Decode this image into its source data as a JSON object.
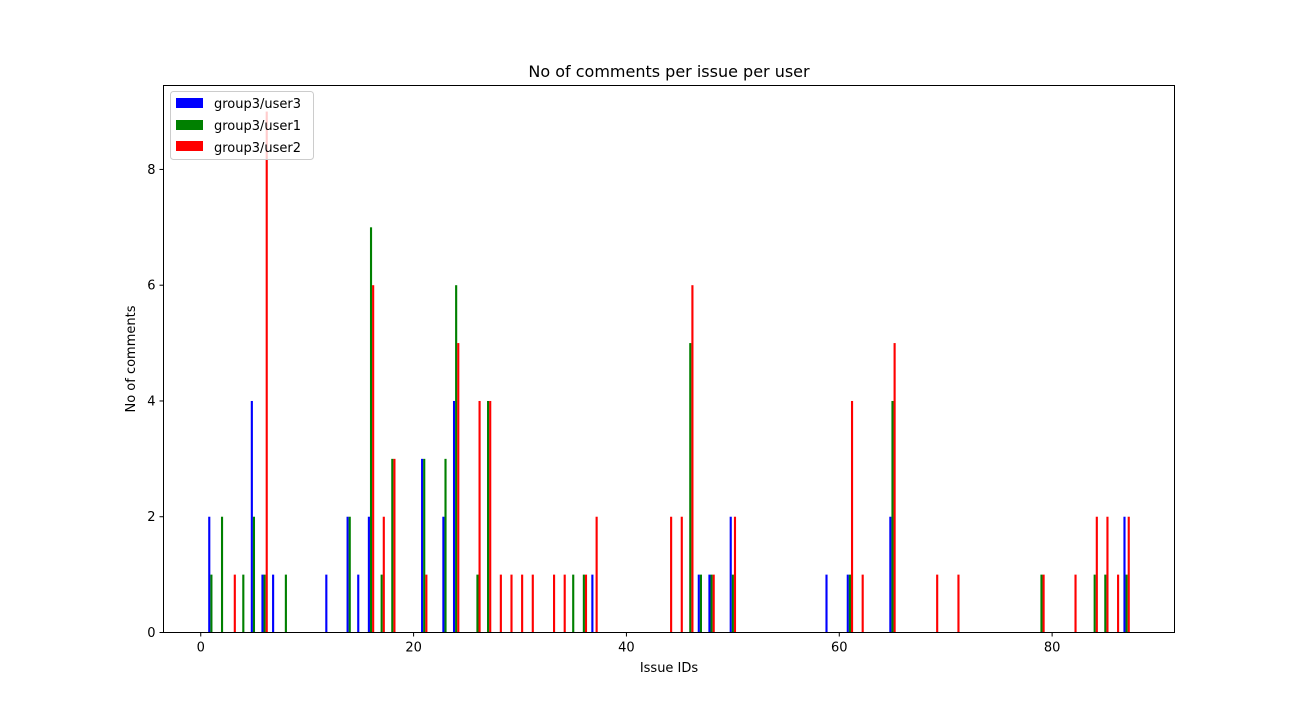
{
  "chart_data": {
    "type": "bar",
    "title": "No of comments per issue per user",
    "xlabel": "Issue IDs",
    "ylabel": "No of comments",
    "xlim": [
      -3.5,
      91.5
    ],
    "ylim": [
      0,
      9.45
    ],
    "xticks": [
      0,
      20,
      40,
      60,
      80
    ],
    "yticks": [
      0,
      2,
      4,
      6,
      8
    ],
    "grid": false,
    "legend_position": "upper left",
    "bar_width": 0.2,
    "series": [
      {
        "name": "group3/user3",
        "color": "#0000ff",
        "offset": -0.2,
        "points": [
          [
            1,
            2
          ],
          [
            5,
            4
          ],
          [
            6,
            1
          ],
          [
            7,
            1
          ],
          [
            12,
            1
          ],
          [
            14,
            2
          ],
          [
            15,
            1
          ],
          [
            16,
            2
          ],
          [
            21,
            3
          ],
          [
            23,
            2
          ],
          [
            24,
            4
          ],
          [
            37,
            1
          ],
          [
            47,
            1
          ],
          [
            48,
            1
          ],
          [
            50,
            2
          ],
          [
            59,
            1
          ],
          [
            61,
            1
          ],
          [
            65,
            2
          ],
          [
            87,
            2
          ]
        ]
      },
      {
        "name": "group3/user1",
        "color": "#008000",
        "offset": 0,
        "points": [
          [
            1,
            1
          ],
          [
            2,
            2
          ],
          [
            4,
            1
          ],
          [
            5,
            2
          ],
          [
            6,
            1
          ],
          [
            8,
            1
          ],
          [
            14,
            2
          ],
          [
            16,
            7
          ],
          [
            17,
            1
          ],
          [
            18,
            3
          ],
          [
            21,
            3
          ],
          [
            23,
            3
          ],
          [
            24,
            6
          ],
          [
            26,
            1
          ],
          [
            27,
            4
          ],
          [
            35,
            1
          ],
          [
            36,
            1
          ],
          [
            46,
            5
          ],
          [
            47,
            1
          ],
          [
            48,
            1
          ],
          [
            50,
            1
          ],
          [
            61,
            1
          ],
          [
            65,
            4
          ],
          [
            79,
            1
          ],
          [
            84,
            1
          ],
          [
            85,
            1
          ],
          [
            87,
            1
          ]
        ]
      },
      {
        "name": "group3/user2",
        "color": "#ff0000",
        "offset": 0.2,
        "points": [
          [
            3,
            1
          ],
          [
            6,
            9
          ],
          [
            16,
            6
          ],
          [
            17,
            2
          ],
          [
            18,
            3
          ],
          [
            21,
            1
          ],
          [
            24,
            5
          ],
          [
            26,
            4
          ],
          [
            27,
            4
          ],
          [
            28,
            1
          ],
          [
            29,
            1
          ],
          [
            30,
            1
          ],
          [
            31,
            1
          ],
          [
            33,
            1
          ],
          [
            34,
            1
          ],
          [
            36,
            1
          ],
          [
            37,
            2
          ],
          [
            44,
            2
          ],
          [
            45,
            2
          ],
          [
            46,
            6
          ],
          [
            48,
            1
          ],
          [
            50,
            2
          ],
          [
            61,
            4
          ],
          [
            62,
            1
          ],
          [
            65,
            5
          ],
          [
            69,
            1
          ],
          [
            71,
            1
          ],
          [
            79,
            1
          ],
          [
            82,
            1
          ],
          [
            84,
            2
          ],
          [
            85,
            2
          ],
          [
            86,
            1
          ],
          [
            87,
            2
          ]
        ]
      }
    ]
  }
}
